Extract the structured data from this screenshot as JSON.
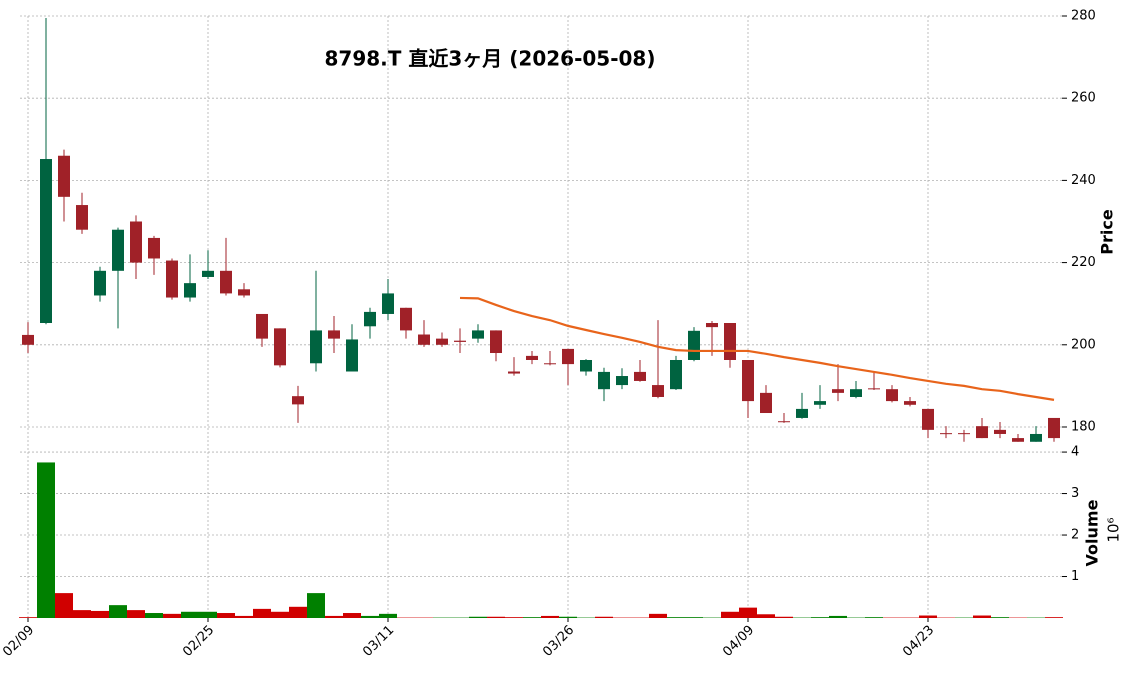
{
  "chart_data": {
    "type": "candlestick",
    "title": "8798.T  直近3ヶ月  (2026-05-08)",
    "ylabel": "Price",
    "categories": [
      "02/09",
      null,
      null,
      null,
      null,
      null,
      null,
      null,
      null,
      null,
      "02/25",
      null,
      null,
      null,
      null,
      null,
      null,
      null,
      null,
      null,
      "03/11",
      null,
      null,
      null,
      null,
      null,
      null,
      null,
      null,
      null,
      "03/26",
      null,
      null,
      null,
      null,
      null,
      null,
      null,
      null,
      null,
      "04/09",
      null,
      null,
      null,
      null,
      null,
      null,
      null,
      null,
      null,
      "04/23",
      null,
      null,
      null,
      null,
      null,
      null,
      null
    ],
    "open": [
      202.4,
      205.3,
      246,
      234,
      212,
      218,
      230,
      226,
      220.5,
      211.5,
      216.5,
      218,
      213.5,
      207.5,
      204,
      187.5,
      195.5,
      203.5,
      193.5,
      204.5,
      207.5,
      209,
      202.5,
      201.5,
      201,
      201.5,
      203.5,
      193.5,
      197.3,
      195.5,
      199,
      193.5,
      189.2,
      190.2,
      193.4,
      190.2,
      189.2,
      196.3,
      205.3,
      205.3,
      196.3,
      188.3,
      181.4,
      182.2,
      185.4,
      189.2,
      187.3,
      189.4,
      189.2,
      186.3,
      184.4,
      178.5,
      178.5,
      180.2,
      179.3,
      177.3,
      176.4,
      182.2
    ],
    "high": [
      205.5,
      279.5,
      247.5,
      237,
      219,
      228.5,
      231.5,
      226.5,
      221,
      222,
      223,
      226,
      215,
      207.5,
      204,
      190,
      218,
      207,
      205,
      209,
      216,
      209,
      206,
      203,
      204,
      205,
      203.5,
      197,
      198.5,
      198.5,
      199,
      196.5,
      194.4,
      194.3,
      196.3,
      206,
      197.3,
      204.3,
      205.8,
      205.3,
      196.3,
      190.2,
      183.4,
      188.3,
      190.2,
      195.3,
      191.2,
      193.4,
      190.2,
      187.3,
      184.4,
      180.2,
      179.3,
      182.2,
      181.2,
      178.3,
      180.2,
      182.2
    ],
    "low": [
      198,
      205,
      230,
      227,
      210.5,
      204,
      216,
      217,
      211,
      210.5,
      216,
      212,
      211.5,
      199.5,
      194.5,
      181,
      193.5,
      198,
      193.5,
      201.5,
      206,
      201.5,
      199.5,
      199.5,
      198,
      200.5,
      196,
      192.5,
      195.3,
      195,
      190.2,
      192.5,
      186.3,
      189.2,
      191,
      187,
      189,
      196,
      197.3,
      194.4,
      182.2,
      183.4,
      181,
      182,
      184.4,
      186.3,
      187,
      189,
      186,
      185,
      177.3,
      177.3,
      176.4,
      177.3,
      177.3,
      176.4,
      176.4,
      176.4
    ],
    "close": [
      200,
      245.2,
      236,
      228,
      218,
      228,
      220,
      221,
      211.5,
      215,
      218,
      212.5,
      212,
      201.5,
      195,
      185.5,
      203.5,
      201.5,
      201.3,
      208,
      212.5,
      203.5,
      200,
      200,
      200.7,
      203.5,
      198,
      193,
      196.3,
      195.3,
      195.3,
      196.3,
      193.4,
      192.4,
      191.2,
      187.3,
      196.3,
      203.4,
      204.3,
      196.3,
      186.3,
      183.4,
      181.2,
      184.4,
      186.3,
      188.3,
      189.2,
      189.2,
      186.3,
      185.4,
      179.3,
      178.3,
      178.3,
      177.3,
      178.3,
      176.4,
      178.3,
      177.3
    ],
    "up_color": "#006340",
    "down_color": "#a02128",
    "ma": {
      "color": "#e8641b",
      "values": [
        null,
        null,
        null,
        null,
        null,
        null,
        null,
        null,
        null,
        null,
        null,
        null,
        null,
        null,
        null,
        null,
        null,
        null,
        null,
        null,
        null,
        null,
        null,
        null,
        211.4,
        211.3,
        209.7,
        208.2,
        207.0,
        206.0,
        204.6,
        203.6,
        202.6,
        201.7,
        200.7,
        199.5,
        198.7,
        198.5,
        198.5,
        198.5,
        198.5,
        197.8,
        197.0,
        196.3,
        195.6,
        194.8,
        194.1,
        193.4,
        192.7,
        191.9,
        191.2,
        190.5,
        190.0,
        189.2,
        188.8,
        188.0,
        187.3,
        186.6
      ]
    },
    "ylim": [
      174.4,
      280
    ],
    "yticks": [
      180,
      200,
      220,
      240,
      260,
      280
    ],
    "grid": true,
    "volume": {
      "ylabel": "Volume",
      "offset_label": "10⁶",
      "values": [
        0.02,
        3.75,
        0.6,
        0.19,
        0.17,
        0.31,
        0.19,
        0.12,
        0.1,
        0.15,
        0.15,
        0.12,
        0.05,
        0.22,
        0.15,
        0.27,
        0.6,
        0.05,
        0.12,
        0.05,
        0.1,
        0.01,
        0.01,
        0.01,
        0.01,
        0.03,
        0.03,
        0.02,
        0.02,
        0.05,
        0.03,
        0.01,
        0.03,
        0.01,
        0.01,
        0.1,
        0.02,
        0.02,
        0.01,
        0.15,
        0.25,
        0.09,
        0.03,
        0.01,
        0.02,
        0.05,
        0.01,
        0.02,
        0.01,
        0.01,
        0.06,
        0.01,
        0.01,
        0.06,
        0.02,
        0.01,
        0.01,
        0.02
      ],
      "up_color": "#008000",
      "down_color": "#d00000",
      "ylim": [
        0,
        4.05
      ],
      "yticks": [
        1,
        2,
        3,
        4
      ]
    }
  }
}
